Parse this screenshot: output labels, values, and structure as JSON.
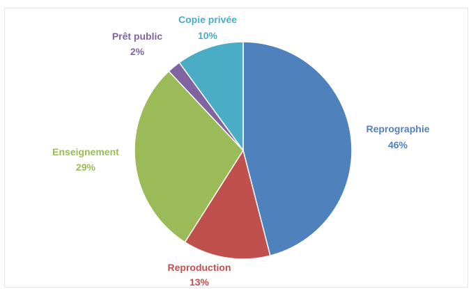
{
  "chart_data": {
    "type": "pie",
    "title": "",
    "slices": [
      {
        "name": "Reprographie",
        "label_value": "46%",
        "value": 46,
        "color": "#4f81bd"
      },
      {
        "name": "Reproduction",
        "label_value": "13%",
        "value": 13,
        "color": "#c0504d"
      },
      {
        "name": "Enseignement",
        "label_value": "29%",
        "value": 29,
        "color": "#9bbb59"
      },
      {
        "name": "Prêt public",
        "label_value": "2%",
        "value": 2,
        "color": "#8064a2"
      },
      {
        "name": "Copie privée",
        "label_value": "10%",
        "value": 10,
        "color": "#4bacc6"
      }
    ],
    "start_angle_deg": 0,
    "direction": "clockwise",
    "legend": "none",
    "data_labels": "outside"
  }
}
